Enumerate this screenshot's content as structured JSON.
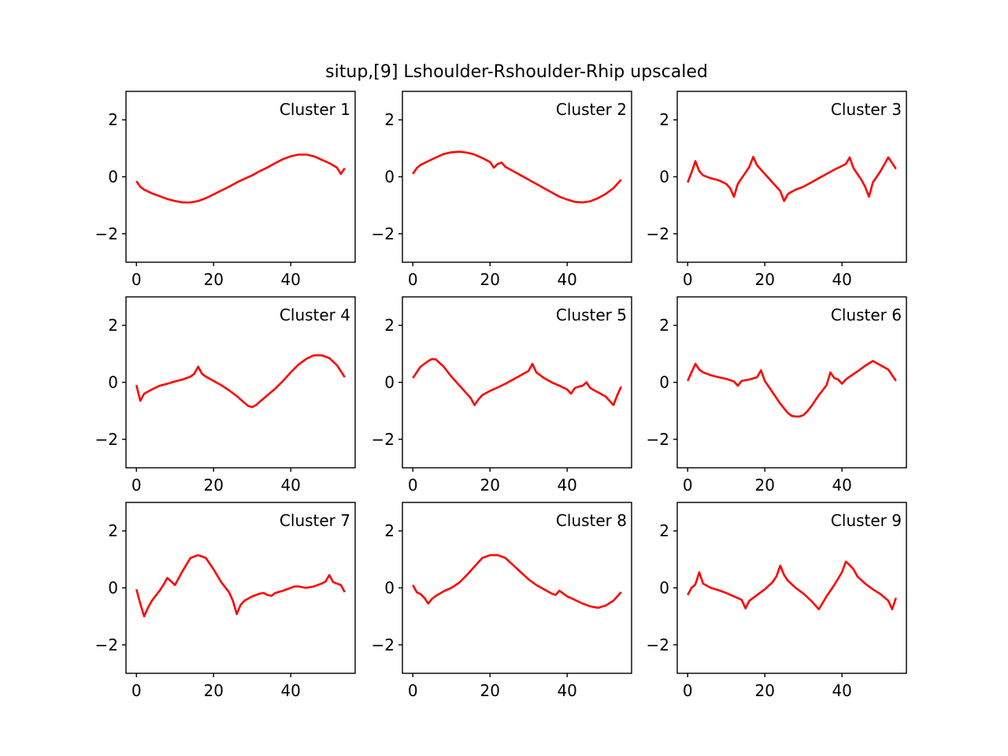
{
  "title": "situp,[9] Lshoulder-Rshoulder-Rhip upscaled",
  "line_color": "#ff0000",
  "chart_data": {
    "type": "line",
    "title": "situp,[9] Lshoulder-Rshoulder-Rhip upscaled",
    "xlim": [
      -2.7,
      56.7
    ],
    "ylim": [
      -3,
      3
    ],
    "xticks": [
      0,
      20,
      40
    ],
    "yticks": [
      2,
      0,
      -2
    ],
    "xtick_labels": [
      "0",
      "20",
      "40"
    ],
    "ytick_labels": [
      "2",
      "0",
      "−2"
    ],
    "grid": false,
    "panels": [
      {
        "label": "Cluster 1",
        "x": [
          0,
          1,
          2,
          4,
          6,
          8,
          10,
          12,
          14,
          16,
          18,
          20,
          22,
          24,
          26,
          28,
          30,
          32,
          34,
          36,
          38,
          40,
          42,
          44,
          46,
          48,
          50,
          52,
          53,
          54
        ],
        "y": [
          -0.15,
          -0.35,
          -0.45,
          -0.58,
          -0.68,
          -0.78,
          -0.85,
          -0.9,
          -0.9,
          -0.85,
          -0.75,
          -0.62,
          -0.48,
          -0.35,
          -0.2,
          -0.07,
          0.05,
          0.2,
          0.33,
          0.48,
          0.62,
          0.72,
          0.78,
          0.78,
          0.72,
          0.6,
          0.48,
          0.32,
          0.1,
          0.3
        ]
      },
      {
        "label": "Cluster 2",
        "x": [
          0,
          1,
          2,
          4,
          6,
          8,
          10,
          12,
          14,
          16,
          18,
          20,
          21,
          22,
          23,
          24,
          26,
          28,
          30,
          32,
          34,
          36,
          38,
          40,
          42,
          44,
          46,
          48,
          50,
          52,
          53,
          54
        ],
        "y": [
          0.1,
          0.3,
          0.42,
          0.55,
          0.68,
          0.8,
          0.86,
          0.88,
          0.85,
          0.78,
          0.66,
          0.52,
          0.32,
          0.45,
          0.5,
          0.35,
          0.2,
          0.05,
          -0.1,
          -0.25,
          -0.4,
          -0.55,
          -0.7,
          -0.8,
          -0.88,
          -0.9,
          -0.86,
          -0.75,
          -0.6,
          -0.4,
          -0.25,
          -0.1
        ]
      },
      {
        "label": "Cluster 3",
        "x": [
          0,
          1,
          2,
          3,
          4,
          6,
          8,
          10,
          11,
          12,
          13,
          14,
          15,
          16,
          17,
          18,
          20,
          22,
          24,
          25,
          26,
          28,
          30,
          32,
          34,
          36,
          38,
          40,
          41,
          42,
          43,
          44,
          45,
          46,
          47,
          48,
          50,
          52,
          54
        ],
        "y": [
          -0.2,
          0.15,
          0.55,
          0.2,
          0.05,
          -0.05,
          -0.12,
          -0.25,
          -0.4,
          -0.7,
          -0.25,
          -0.05,
          0.15,
          0.35,
          0.7,
          0.4,
          0.1,
          -0.2,
          -0.5,
          -0.85,
          -0.6,
          -0.45,
          -0.35,
          -0.2,
          -0.05,
          0.1,
          0.25,
          0.38,
          0.45,
          0.68,
          0.3,
          0.1,
          -0.1,
          -0.35,
          -0.7,
          -0.2,
          0.2,
          0.68,
          0.28
        ]
      },
      {
        "label": "Cluster 4",
        "x": [
          0,
          1,
          2,
          4,
          6,
          8,
          10,
          12,
          14,
          15,
          16,
          17,
          18,
          20,
          22,
          24,
          26,
          28,
          29,
          30,
          31,
          32,
          34,
          36,
          38,
          40,
          42,
          44,
          46,
          48,
          50,
          52,
          54
        ],
        "y": [
          -0.1,
          -0.65,
          -0.4,
          -0.25,
          -0.12,
          -0.05,
          0.03,
          0.1,
          0.2,
          0.3,
          0.55,
          0.3,
          0.2,
          0.05,
          -0.1,
          -0.28,
          -0.48,
          -0.72,
          -0.83,
          -0.87,
          -0.8,
          -0.68,
          -0.45,
          -0.22,
          0.05,
          0.35,
          0.62,
          0.82,
          0.95,
          0.95,
          0.85,
          0.6,
          0.18
        ]
      },
      {
        "label": "Cluster 5",
        "x": [
          0,
          1,
          2,
          4,
          5,
          6,
          8,
          10,
          12,
          14,
          15,
          16,
          17,
          18,
          20,
          22,
          24,
          26,
          28,
          30,
          31,
          32,
          34,
          36,
          38,
          40,
          41,
          42,
          43,
          44,
          45,
          46,
          47,
          48,
          50,
          52,
          53,
          54
        ],
        "y": [
          0.15,
          0.35,
          0.55,
          0.75,
          0.82,
          0.8,
          0.55,
          0.2,
          -0.1,
          -0.4,
          -0.55,
          -0.8,
          -0.6,
          -0.45,
          -0.3,
          -0.18,
          -0.05,
          0.1,
          0.25,
          0.4,
          0.65,
          0.35,
          0.15,
          0.0,
          -0.12,
          -0.25,
          -0.4,
          -0.2,
          -0.15,
          -0.12,
          0.0,
          -0.2,
          -0.28,
          -0.35,
          -0.5,
          -0.8,
          -0.45,
          -0.15
        ]
      },
      {
        "label": "Cluster 6",
        "x": [
          0,
          1,
          2,
          3,
          4,
          6,
          8,
          10,
          12,
          13,
          14,
          16,
          18,
          19,
          20,
          22,
          24,
          26,
          27,
          28,
          29,
          30,
          31,
          32,
          34,
          36,
          37,
          38,
          39,
          40,
          41,
          42,
          44,
          46,
          48,
          50,
          52,
          54
        ],
        "y": [
          0.05,
          0.35,
          0.65,
          0.45,
          0.35,
          0.25,
          0.18,
          0.12,
          0.03,
          -0.12,
          0.05,
          0.1,
          0.18,
          0.42,
          0.05,
          -0.35,
          -0.75,
          -1.08,
          -1.18,
          -1.2,
          -1.2,
          -1.15,
          -1.02,
          -0.85,
          -0.45,
          -0.1,
          0.35,
          0.15,
          0.1,
          -0.05,
          0.1,
          0.2,
          0.38,
          0.58,
          0.75,
          0.6,
          0.45,
          0.05
        ]
      },
      {
        "label": "Cluster 7",
        "x": [
          0,
          1,
          2,
          3,
          4,
          6,
          7,
          8,
          10,
          12,
          14,
          16,
          18,
          20,
          22,
          24,
          25,
          26,
          27,
          28,
          30,
          32,
          33,
          34,
          35,
          36,
          38,
          40,
          41,
          42,
          44,
          46,
          48,
          49,
          50,
          51,
          52,
          53,
          54
        ],
        "y": [
          -0.05,
          -0.55,
          -1.0,
          -0.7,
          -0.45,
          -0.1,
          0.1,
          0.35,
          0.1,
          0.6,
          1.05,
          1.15,
          1.05,
          0.65,
          0.2,
          -0.15,
          -0.45,
          -0.92,
          -0.6,
          -0.45,
          -0.3,
          -0.2,
          -0.18,
          -0.25,
          -0.28,
          -0.18,
          -0.1,
          0.0,
          0.05,
          0.05,
          0.0,
          0.05,
          0.15,
          0.22,
          0.45,
          0.2,
          0.15,
          0.1,
          -0.15
        ]
      },
      {
        "label": "Cluster 8",
        "x": [
          0,
          1,
          2,
          3,
          4,
          5,
          6,
          8,
          10,
          12,
          14,
          16,
          18,
          20,
          22,
          24,
          26,
          28,
          30,
          32,
          34,
          36,
          37,
          38,
          39,
          40,
          42,
          44,
          46,
          48,
          50,
          52,
          54
        ],
        "y": [
          0.1,
          -0.15,
          -0.22,
          -0.35,
          -0.55,
          -0.38,
          -0.28,
          -0.12,
          0.0,
          0.18,
          0.45,
          0.75,
          1.05,
          1.15,
          1.15,
          1.05,
          0.8,
          0.55,
          0.3,
          0.1,
          -0.05,
          -0.2,
          -0.25,
          -0.1,
          -0.2,
          -0.3,
          -0.42,
          -0.55,
          -0.65,
          -0.7,
          -0.62,
          -0.45,
          -0.15
        ]
      },
      {
        "label": "Cluster 9",
        "x": [
          0,
          1,
          2,
          3,
          4,
          6,
          8,
          10,
          12,
          14,
          15,
          16,
          18,
          20,
          22,
          23,
          24,
          25,
          26,
          28,
          30,
          32,
          34,
          36,
          38,
          40,
          41,
          42,
          43,
          44,
          46,
          48,
          50,
          52,
          53,
          54
        ],
        "y": [
          -0.25,
          0.0,
          0.12,
          0.55,
          0.15,
          0.0,
          -0.08,
          -0.18,
          -0.3,
          -0.42,
          -0.72,
          -0.45,
          -0.25,
          -0.05,
          0.2,
          0.4,
          0.78,
          0.45,
          0.25,
          0.0,
          -0.2,
          -0.45,
          -0.75,
          -0.3,
          0.1,
          0.55,
          0.92,
          0.8,
          0.65,
          0.4,
          0.15,
          -0.05,
          -0.22,
          -0.45,
          -0.75,
          -0.35
        ]
      }
    ]
  }
}
